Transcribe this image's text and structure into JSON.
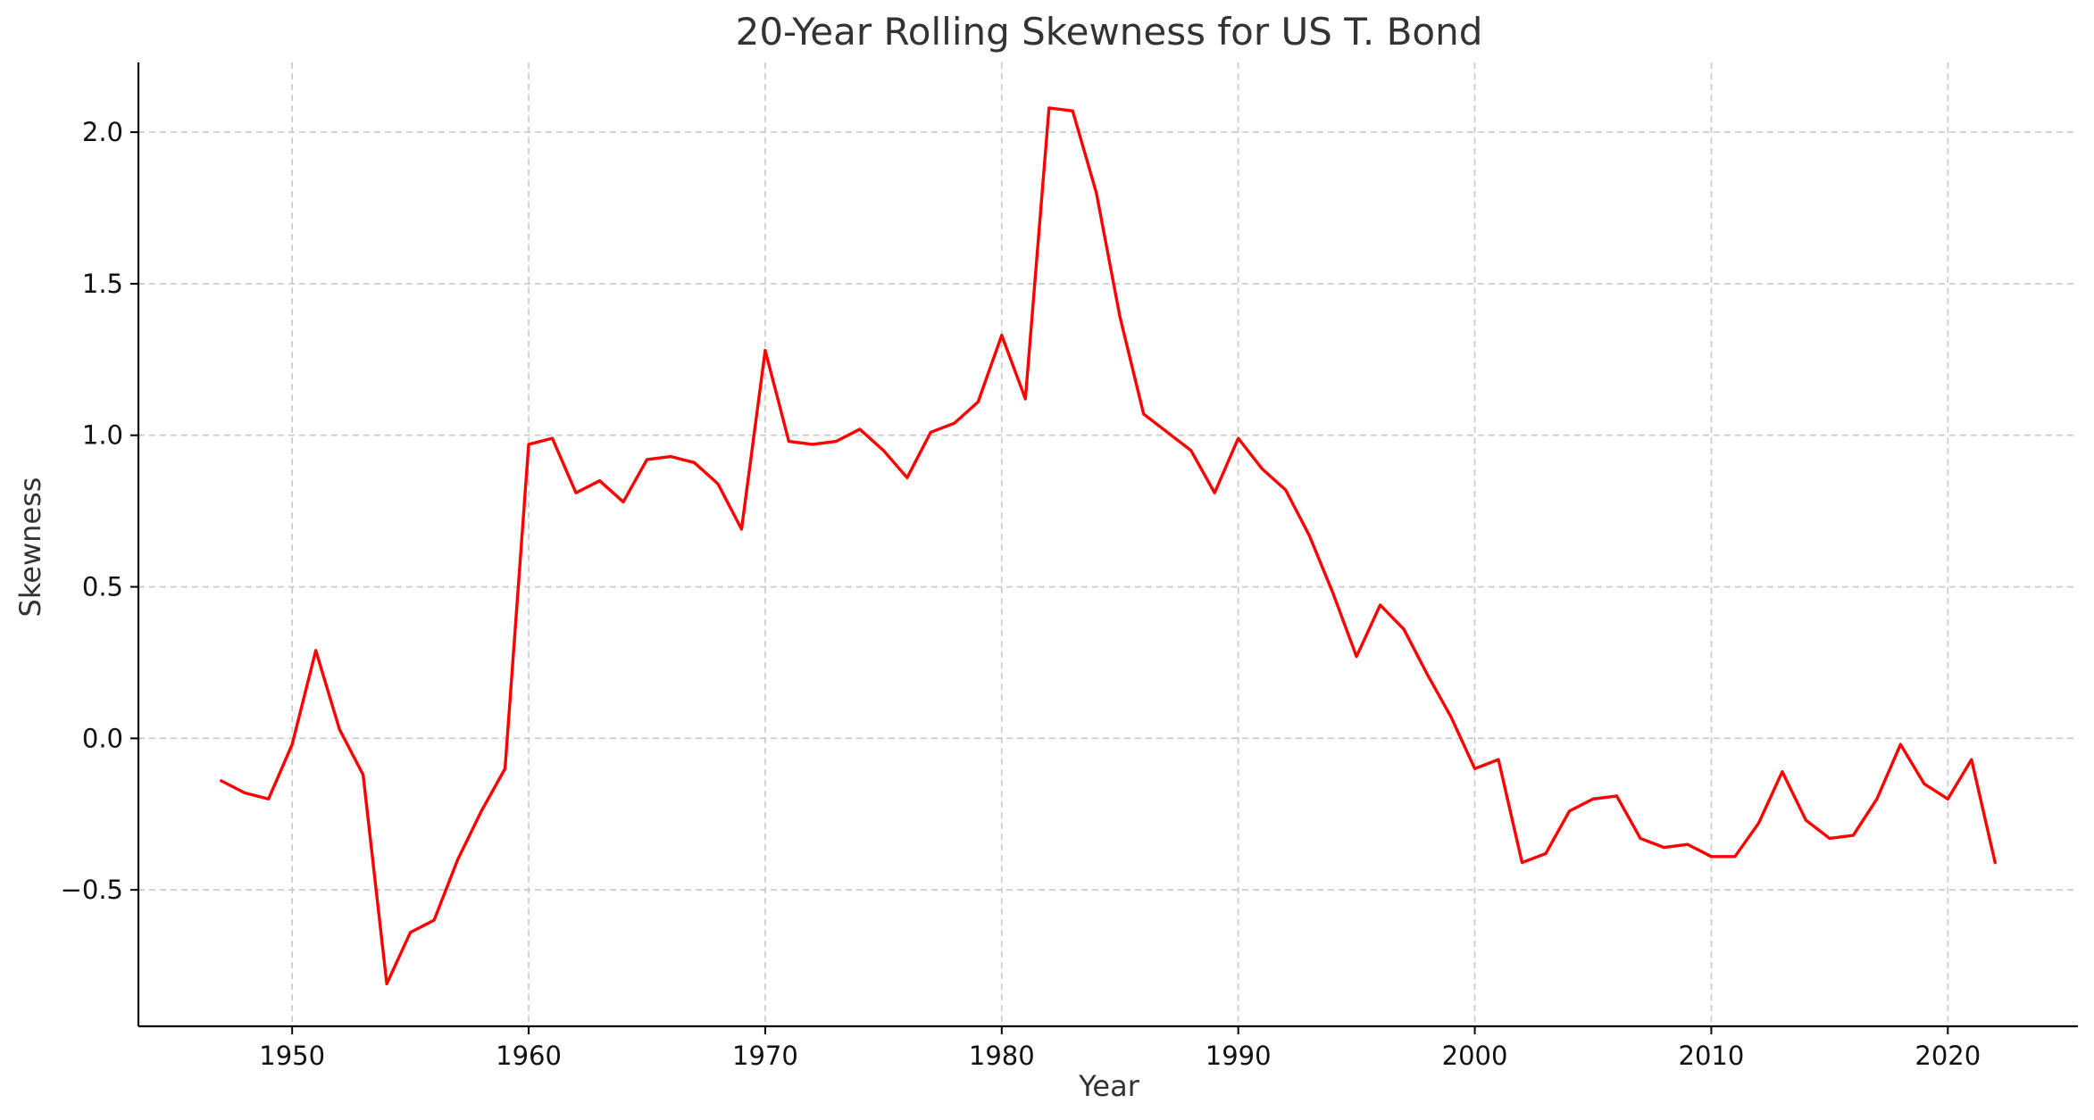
{
  "chart_data": {
    "type": "line",
    "title": "20-Year Rolling Skewness for US T. Bond",
    "xlabel": "Year",
    "ylabel": "Skewness",
    "xlim": [
      1943.5,
      2025.5
    ],
    "ylim": [
      -0.95,
      2.23
    ],
    "xticks": [
      1950,
      1960,
      1970,
      1980,
      1990,
      2000,
      2010,
      2020
    ],
    "yticks": [
      -0.5,
      0.0,
      0.5,
      1.0,
      1.5,
      2.0
    ],
    "ytick_labels": [
      "−0.5",
      "0.0",
      "0.5",
      "1.0",
      "1.5",
      "2.0"
    ],
    "grid": true,
    "line_color": "#ff0000",
    "series": [
      {
        "x": [
          1947,
          1948,
          1949,
          1950,
          1951,
          1952,
          1953,
          1954,
          1955,
          1956,
          1957,
          1958,
          1959,
          1960,
          1961,
          1962,
          1963,
          1964,
          1965,
          1966,
          1967,
          1968,
          1969,
          1970,
          1971,
          1972,
          1973,
          1974,
          1975,
          1976,
          1977,
          1978,
          1979,
          1980,
          1981,
          1982,
          1983,
          1984,
          1985,
          1986,
          1987,
          1988,
          1989,
          1990,
          1991,
          1992,
          1993,
          1994,
          1995,
          1996,
          1997,
          1998,
          1999,
          2000,
          2001,
          2002,
          2003,
          2004,
          2005,
          2006,
          2007,
          2008,
          2009,
          2010,
          2011,
          2012,
          2013,
          2014,
          2015,
          2016,
          2017,
          2018,
          2019,
          2020,
          2021,
          2022
        ],
        "values": [
          -0.14,
          -0.18,
          -0.2,
          -0.02,
          0.29,
          0.03,
          -0.12,
          -0.81,
          -0.64,
          -0.6,
          -0.4,
          -0.24,
          -0.1,
          0.97,
          0.99,
          0.81,
          0.85,
          0.78,
          0.92,
          0.93,
          0.91,
          0.84,
          0.69,
          1.28,
          0.98,
          0.97,
          0.98,
          1.02,
          0.95,
          0.86,
          1.01,
          1.04,
          1.11,
          1.33,
          1.12,
          2.08,
          2.07,
          1.8,
          1.39,
          1.07,
          1.01,
          0.95,
          0.81,
          0.99,
          0.89,
          0.82,
          0.67,
          0.48,
          0.27,
          0.44,
          0.36,
          0.21,
          0.07,
          -0.1,
          -0.07,
          -0.41,
          -0.38,
          -0.24,
          -0.2,
          -0.19,
          -0.33,
          -0.36,
          -0.35,
          -0.39,
          -0.39,
          -0.28,
          -0.11,
          -0.27,
          -0.33,
          -0.32,
          -0.2,
          -0.02,
          -0.15,
          -0.2,
          -0.07,
          -0.41
        ]
      }
    ]
  }
}
